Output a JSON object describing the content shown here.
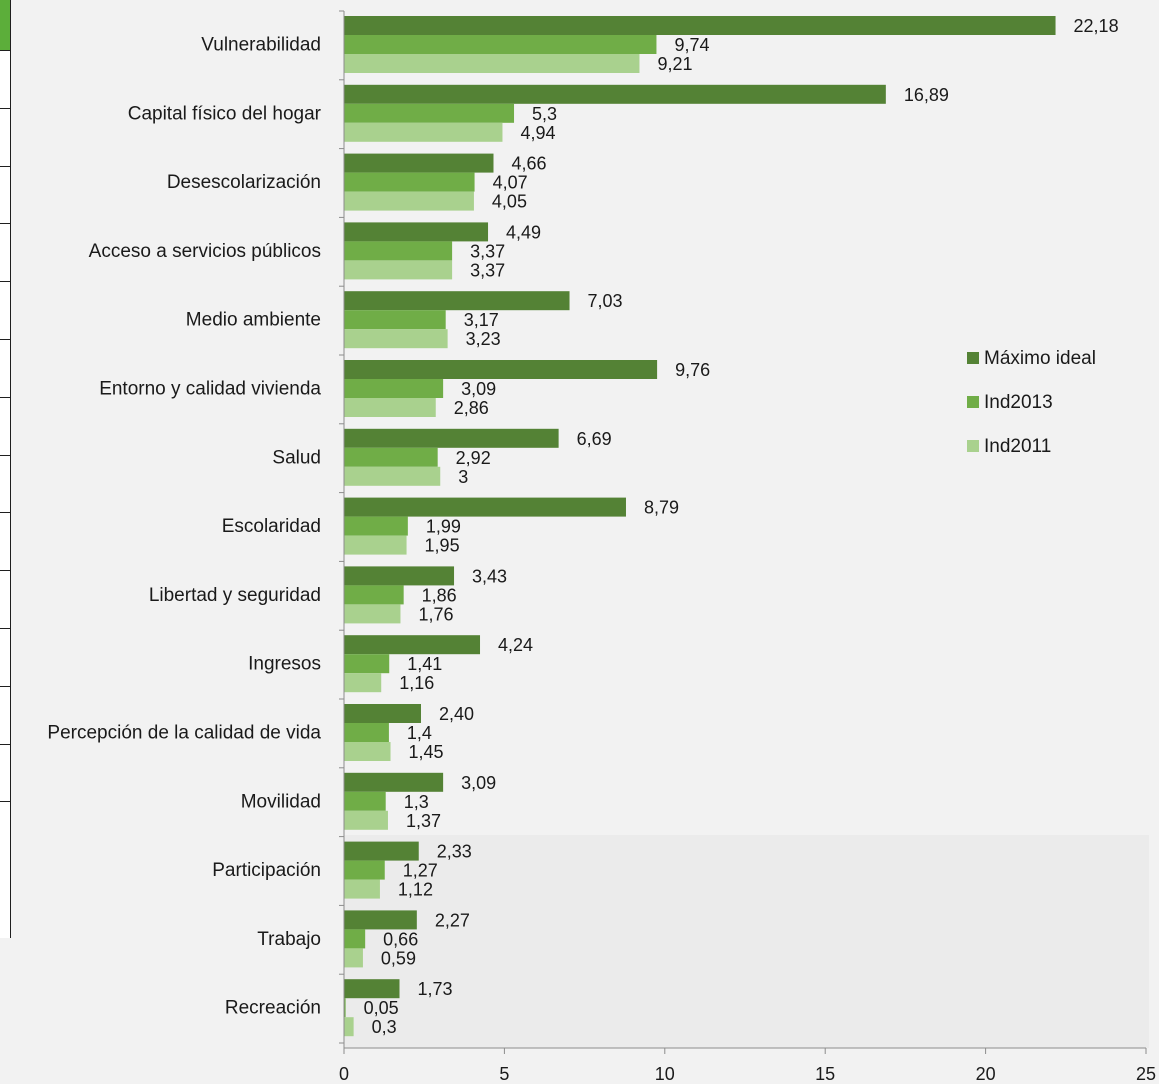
{
  "chart_data": {
    "type": "bar",
    "orientation": "horizontal",
    "categories": [
      "Vulnerabilidad",
      "Capital físico del hogar",
      "Desescolarización",
      "Acceso a servicios públicos",
      "Medio ambiente",
      "Entorno y calidad vivienda",
      "Salud",
      "Escolaridad",
      "Libertad y seguridad",
      "Ingresos",
      "Percepción de la calidad de vida",
      "Movilidad",
      "Participación",
      "Trabajo",
      "Recreación"
    ],
    "series": [
      {
        "name": "Máximo ideal",
        "color": "#548235",
        "values": [
          22.18,
          16.89,
          4.66,
          4.49,
          7.03,
          9.76,
          6.69,
          8.79,
          3.43,
          4.24,
          2.4,
          3.09,
          2.33,
          2.27,
          1.73
        ],
        "labels": [
          "22,18",
          "16,89",
          "4,66",
          "4,49",
          "7,03",
          "9,76",
          "6,69",
          "8,79",
          "3,43",
          "4,24",
          "2,40",
          "3,09",
          "2,33",
          "2,27",
          "1,73"
        ]
      },
      {
        "name": "Ind2013",
        "color": "#70ad47",
        "values": [
          9.74,
          5.3,
          4.07,
          3.37,
          3.17,
          3.09,
          2.92,
          1.99,
          1.86,
          1.41,
          1.4,
          1.3,
          1.27,
          0.66,
          0.05
        ],
        "labels": [
          "9,74",
          "5,3",
          "4,07",
          "3,37",
          "3,17",
          "3,09",
          "2,92",
          "1,99",
          "1,86",
          "1,41",
          "1,4",
          "1,3",
          "1,27",
          "0,66",
          "0,05"
        ]
      },
      {
        "name": "Ind2011",
        "color": "#a9d18e",
        "values": [
          9.21,
          4.94,
          4.05,
          3.37,
          3.23,
          2.86,
          3,
          1.95,
          1.76,
          1.16,
          1.45,
          1.37,
          1.12,
          0.59,
          0.3
        ],
        "labels": [
          "9,21",
          "4,94",
          "4,05",
          "3,37",
          "3,23",
          "2,86",
          "3",
          "1,95",
          "1,76",
          "1,16",
          "1,45",
          "1,37",
          "1,12",
          "0,59",
          "0,3"
        ]
      }
    ],
    "xlim": [
      0,
      25
    ],
    "xticks": [
      0,
      5,
      10,
      15,
      20,
      25
    ],
    "xtick_labels": [
      "0",
      "5",
      "10",
      "15",
      "20",
      "25"
    ],
    "grid": false,
    "legend_position": "right"
  }
}
